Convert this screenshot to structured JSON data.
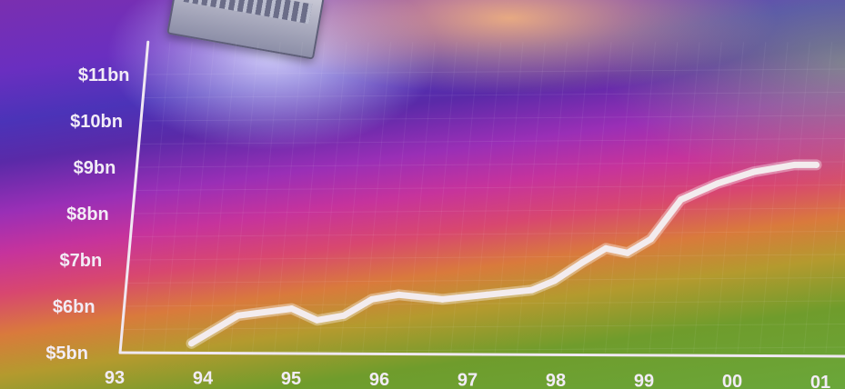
{
  "chart_data": {
    "type": "line",
    "title": "",
    "xlabel": "",
    "ylabel": "",
    "x_tick_labels": [
      "93",
      "94",
      "95",
      "96",
      "97",
      "98",
      "99",
      "00",
      "01"
    ],
    "y_tick_labels": [
      "$5bn",
      "$6bn",
      "$7bn",
      "$8bn",
      "$9bn",
      "$10bn",
      "$11bn"
    ],
    "ylim": [
      5,
      11
    ],
    "xlim": [
      1993,
      2001
    ],
    "grid": true,
    "series": [
      {
        "color": "#f3ecee",
        "points": [
          {
            "x": 1993.8,
            "y": 5.2
          },
          {
            "x": 1994.3,
            "y": 5.8
          },
          {
            "x": 1994.9,
            "y": 5.95
          },
          {
            "x": 1995.2,
            "y": 5.7
          },
          {
            "x": 1995.5,
            "y": 5.8
          },
          {
            "x": 1995.8,
            "y": 6.15
          },
          {
            "x": 1996.1,
            "y": 6.25
          },
          {
            "x": 1996.6,
            "y": 6.15
          },
          {
            "x": 1997.1,
            "y": 6.25
          },
          {
            "x": 1997.6,
            "y": 6.35
          },
          {
            "x": 1997.85,
            "y": 6.55
          },
          {
            "x": 1998.15,
            "y": 6.95
          },
          {
            "x": 1998.4,
            "y": 7.25
          },
          {
            "x": 1998.65,
            "y": 7.15
          },
          {
            "x": 1998.9,
            "y": 7.45
          },
          {
            "x": 1999.2,
            "y": 8.3
          },
          {
            "x": 1999.6,
            "y": 8.65
          },
          {
            "x": 2000.0,
            "y": 8.9
          },
          {
            "x": 2000.45,
            "y": 9.05
          },
          {
            "x": 2000.7,
            "y": 9.05
          }
        ]
      }
    ]
  }
}
